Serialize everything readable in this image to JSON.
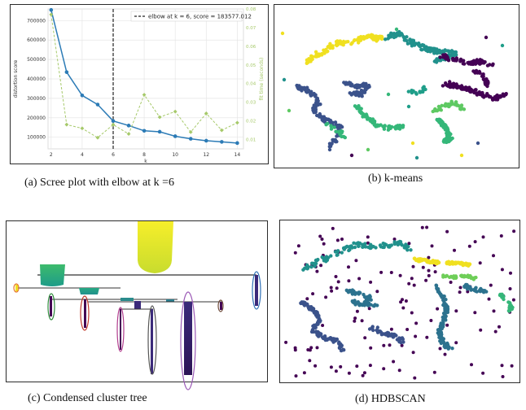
{
  "captions": {
    "a": "(a)  Scree plot with elbow at k =6",
    "b": "(b) k-means",
    "c": "(c) Condensed cluster tree",
    "d": "(d) HDBSCAN"
  },
  "chart_data": [
    {
      "type": "line",
      "panel": "a",
      "title": "",
      "xlabel": "k",
      "ylabel": "distortion score",
      "ylabel_right": "fit time (seconds)",
      "x": [
        2,
        3,
        4,
        5,
        6,
        7,
        8,
        9,
        10,
        11,
        12,
        13,
        14
      ],
      "xticks": [
        2,
        4,
        6,
        8,
        10,
        12,
        14
      ],
      "xlim": [
        1.8,
        14.4
      ],
      "ylim": [
        40000,
        760000
      ],
      "yticks": [
        100000,
        200000,
        300000,
        400000,
        500000,
        600000,
        700000
      ],
      "ylim_right": [
        0.005,
        0.08
      ],
      "yticks_right": [
        0.01,
        0.02,
        0.03,
        0.04,
        0.05,
        0.06,
        0.07,
        0.08
      ],
      "grid": true,
      "legend_placement": "top-right",
      "elbow": {
        "k": 6,
        "label": "elbow at k = 6, score = 183577.012"
      },
      "series": [
        {
          "values": [
            755000,
            435000,
            315000,
            268000,
            183577,
            160000,
            133000,
            128000,
            105000,
            92000,
            82000,
            76000,
            70000
          ],
          "color": "#2c7bb6",
          "axis": "left",
          "style": "solid"
        },
        {
          "values": [
            0.077,
            0.018,
            0.016,
            0.011,
            0.018,
            0.013,
            0.034,
            0.022,
            0.025,
            0.014,
            0.024,
            0.015,
            0.019
          ],
          "color": "#a6c96a",
          "axis": "right",
          "style": "dashed"
        }
      ]
    },
    {
      "type": "scatter",
      "panel": "b",
      "title": "",
      "colors": [
        "#f0e020",
        "#21918c",
        "#3b528b",
        "#440154",
        "#5ec962",
        "#35b779",
        "#1f9e89"
      ]
    },
    {
      "type": "scatter",
      "panel": "d",
      "title": "",
      "colors": [
        "#440154",
        "#35b779",
        "#21918c",
        "#3b528b",
        "#f0e020",
        "#6ece58",
        "#2c728e"
      ]
    }
  ]
}
